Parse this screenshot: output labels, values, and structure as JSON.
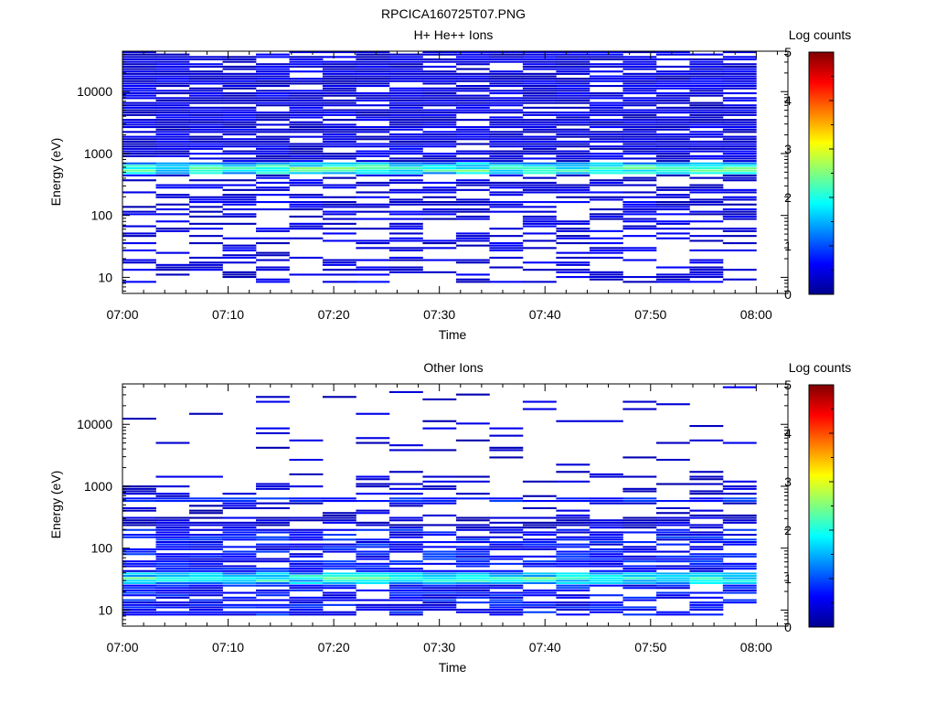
{
  "figure": {
    "title": "RPCICA160725T07.PNG"
  },
  "chart_data": [
    {
      "type": "heatmap",
      "title": "H+ He++ Ions",
      "xlabel": "Time",
      "ylabel": "Energy (eV)",
      "colorbar_label": "Log counts",
      "x_ticks": [
        "07:00",
        "07:10",
        "07:20",
        "07:30",
        "07:40",
        "07:50",
        "08:00"
      ],
      "x_range_minutes": [
        0,
        63
      ],
      "y_ticks": [
        "10",
        "100",
        "1000",
        "10000"
      ],
      "y_scale": "log",
      "y_range": [
        5.5,
        45000
      ],
      "cbar_ticks": [
        "0",
        "1",
        "2",
        "3",
        "4",
        "5"
      ],
      "cbar_range": [
        0,
        5
      ],
      "time_bins": 19,
      "band_peak_eV": 560,
      "band_max_log_counts": 2.9,
      "high_energy_coverage": "dense",
      "low_energy_floor_eV": 8
    },
    {
      "type": "heatmap",
      "title": "Other Ions",
      "xlabel": "Time",
      "ylabel": "Energy (eV)",
      "colorbar_label": "Log counts",
      "x_ticks": [
        "07:00",
        "07:10",
        "07:20",
        "07:30",
        "07:40",
        "07:50",
        "08:00"
      ],
      "x_range_minutes": [
        0,
        63
      ],
      "y_ticks": [
        "10",
        "100",
        "1000",
        "10000"
      ],
      "y_scale": "log",
      "y_range": [
        5.5,
        45000
      ],
      "cbar_ticks": [
        "0",
        "1",
        "2",
        "3",
        "4",
        "5"
      ],
      "cbar_range": [
        0,
        5
      ],
      "time_bins": 19,
      "band_peak_eV": 32,
      "band_max_log_counts": 2.6,
      "secondary_band_eV": 590,
      "high_energy_coverage": "sparse",
      "low_energy_floor_eV": 8
    }
  ]
}
